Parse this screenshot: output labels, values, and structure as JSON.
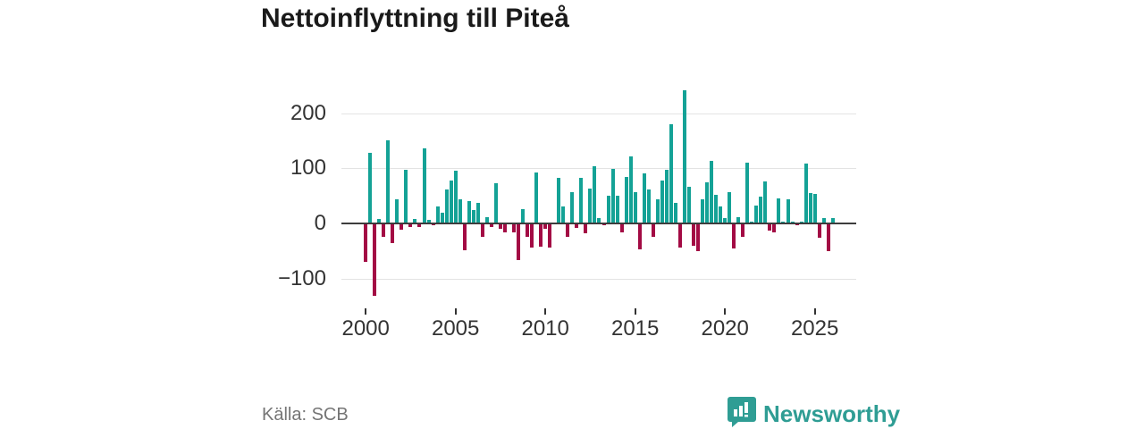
{
  "title": "Nettoinflyttning till Piteå",
  "source": "Källa: SCB",
  "brand": {
    "name": "Newsworthy",
    "color": "#2f9d94",
    "logo_icon": "bar-chart-speech-bubble-icon"
  },
  "colors": {
    "positive_bar": "#14a296",
    "negative_bar": "#a30b44",
    "grid": "#e3e3e3",
    "zero_axis": "#3d3d3d",
    "tick_text": "#333333",
    "title_text": "#1a1a1a",
    "muted_text": "#757575",
    "background": "#ffffff"
  },
  "chart_data": {
    "type": "bar",
    "title": "Nettoinflyttning till Piteå",
    "frequency": "quarterly",
    "x_start_year": 2000,
    "x_start_quarter": 1,
    "values": [
      -70,
      128,
      -132,
      8,
      -25,
      150,
      -36,
      44,
      -12,
      98,
      -6,
      8,
      -7,
      136,
      6,
      -4,
      30,
      19,
      61,
      78,
      96,
      44,
      -48,
      41,
      25,
      38,
      -24,
      12,
      -7,
      73,
      -9,
      -17,
      0,
      -16,
      -67,
      26,
      -24,
      -43,
      92,
      -42,
      -9,
      -43,
      0,
      83,
      30,
      -25,
      57,
      -8,
      82,
      -18,
      64,
      104,
      9,
      -4,
      50,
      99,
      50,
      -17,
      84,
      121,
      57,
      -47,
      91,
      61,
      -24,
      44,
      78,
      97,
      180,
      37,
      -44,
      241,
      66,
      -40,
      -51,
      43,
      75,
      114,
      52,
      30,
      10,
      56,
      -45,
      11,
      -24,
      110,
      4,
      32,
      48,
      76,
      -13,
      -17,
      45,
      3,
      43,
      4,
      -4,
      3,
      108,
      55,
      53,
      -26,
      10,
      -51,
      9
    ],
    "x_tick_years": [
      2000,
      2005,
      2010,
      2015,
      2020,
      2025
    ],
    "x_tick_labels": [
      "2000",
      "2005",
      "2010",
      "2015",
      "2020",
      "2025"
    ],
    "y_ticks": [
      200,
      100,
      0,
      -100
    ],
    "y_tick_labels": [
      "200",
      "100",
      "0",
      "−100"
    ],
    "ylim": [
      -150,
      255
    ],
    "grid": true,
    "legend": "none",
    "bar_color_rule": "positive teal, negative crimson"
  }
}
